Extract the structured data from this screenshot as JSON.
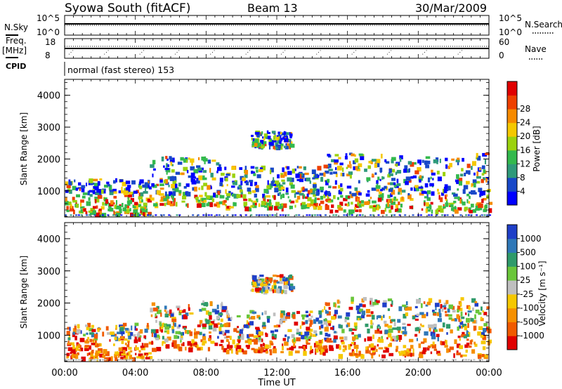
{
  "header": {
    "station": "Syowa South (fitACF)",
    "beam": "Beam 13",
    "date": "30/Mar/2009"
  },
  "noise_panel": {
    "left_label": "N.Sky",
    "right_label": "N.Search",
    "ticks_left": [
      "10^5",
      "10^0"
    ],
    "ticks_right": [
      "10^5",
      "10^0"
    ]
  },
  "freq_panel": {
    "left_label_line1": "Freq.",
    "left_label_line2": "[MHz]",
    "right_label": "Nave",
    "ticks_left": [
      "18",
      "8"
    ],
    "ticks_right": [
      "60",
      "0"
    ]
  },
  "cpid": {
    "label": "CPID",
    "text": "normal (fast stereo) 153"
  },
  "time_axis": {
    "label": "Time UT",
    "ticks": [
      "00:00",
      "04:00",
      "08:00",
      "12:00",
      "16:00",
      "20:00",
      "00:00"
    ]
  },
  "chart_data": [
    {
      "type": "heatmap",
      "quantity": "Power",
      "ylabel": "Slant Range [km]",
      "xlabel": "Time UT",
      "x_range_hours": [
        0,
        24
      ],
      "ylim": [
        180,
        4500
      ],
      "y_ticks": [
        1000,
        2000,
        3000,
        4000
      ],
      "colorbar": {
        "label": "Power [dB]",
        "range": [
          0,
          32
        ],
        "ticks": [
          "4",
          "8",
          "12",
          "16",
          "20",
          "24",
          "28"
        ],
        "colors": [
          "#0000ff",
          "#1848c8",
          "#2f9a7a",
          "#33b94d",
          "#9bd20e",
          "#f5c800",
          "#f68a00",
          "#ee3f00",
          "#e00000"
        ]
      },
      "echo_regions": [
        {
          "t0": 0.0,
          "t1": 4.8,
          "r0": 300,
          "r1": 1400,
          "value": "mixed"
        },
        {
          "t0": 4.8,
          "t1": 9.0,
          "r0": 600,
          "r1": 2100,
          "value": "mixed"
        },
        {
          "t0": 9.0,
          "t1": 14.5,
          "r0": 500,
          "r1": 1800,
          "value": "mixed"
        },
        {
          "t0": 14.5,
          "t1": 24.0,
          "r0": 400,
          "r1": 2200,
          "value": "mixed"
        },
        {
          "t0": 10.5,
          "t1": 12.8,
          "r0": 2400,
          "r1": 2900,
          "value": "mixed"
        }
      ]
    },
    {
      "type": "heatmap",
      "quantity": "Velocity",
      "ylabel": "Slant Range [km]",
      "xlabel": "Time UT",
      "x_range_hours": [
        0,
        24
      ],
      "ylim": [
        180,
        4500
      ],
      "y_ticks": [
        1000,
        2000,
        3000,
        4000
      ],
      "colorbar": {
        "label": "Velocity [m s⁻¹]",
        "ticks": [
          "1000",
          "500",
          "100",
          "25",
          "-25",
          "-100",
          "-500",
          "-1000"
        ],
        "colors": [
          "#1f3fc8",
          "#2f78b8",
          "#2f9a6a",
          "#6ac63a",
          "#bfbfbf",
          "#f5c800",
          "#f69000",
          "#f05a00",
          "#e00000"
        ]
      },
      "echo_regions": [
        {
          "t0": 0.0,
          "t1": 4.8,
          "r0": 300,
          "r1": 1400,
          "value": "mixed"
        },
        {
          "t0": 4.8,
          "t1": 9.0,
          "r0": 600,
          "r1": 2100,
          "value": "mixed"
        },
        {
          "t0": 9.0,
          "t1": 14.5,
          "r0": 500,
          "r1": 1800,
          "value": "mixed"
        },
        {
          "t0": 14.5,
          "t1": 24.0,
          "r0": 400,
          "r1": 2200,
          "value": "mixed"
        },
        {
          "t0": 10.5,
          "t1": 12.8,
          "r0": 2400,
          "r1": 2900,
          "value": "mixed"
        }
      ]
    }
  ]
}
